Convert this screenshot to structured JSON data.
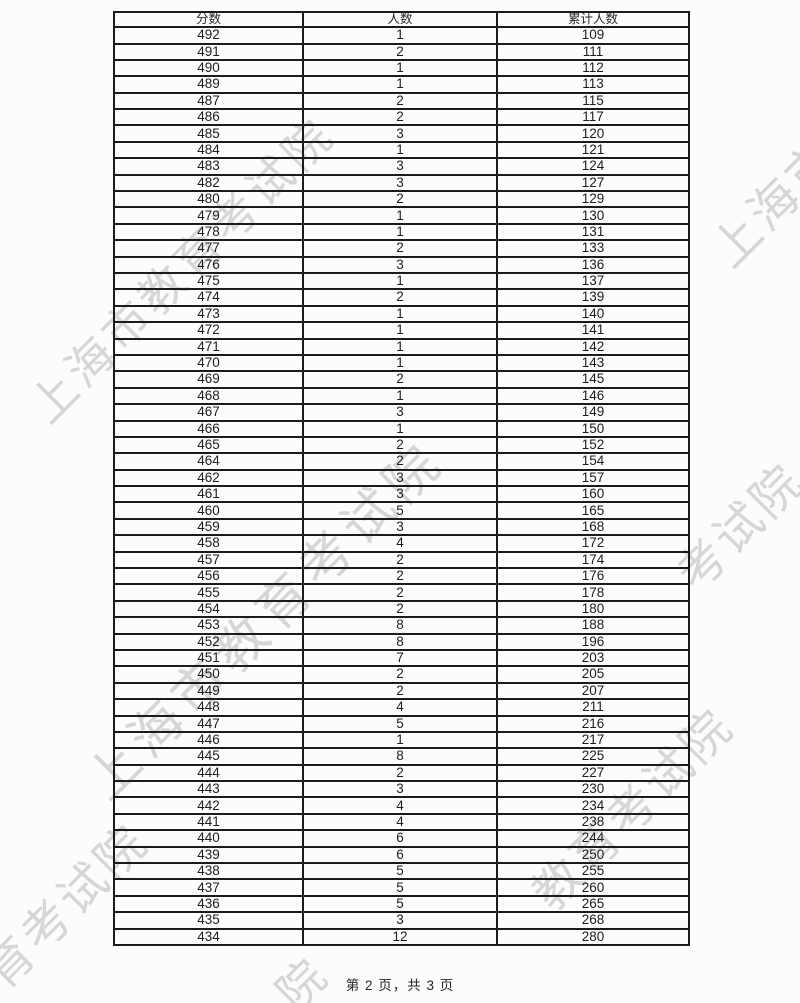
{
  "table": {
    "columns": [
      "分数",
      "人数",
      "累计人数"
    ],
    "rows": [
      [
        492,
        1,
        109
      ],
      [
        491,
        2,
        111
      ],
      [
        490,
        1,
        112
      ],
      [
        489,
        1,
        113
      ],
      [
        487,
        2,
        115
      ],
      [
        486,
        2,
        117
      ],
      [
        485,
        3,
        120
      ],
      [
        484,
        1,
        121
      ],
      [
        483,
        3,
        124
      ],
      [
        482,
        3,
        127
      ],
      [
        480,
        2,
        129
      ],
      [
        479,
        1,
        130
      ],
      [
        478,
        1,
        131
      ],
      [
        477,
        2,
        133
      ],
      [
        476,
        3,
        136
      ],
      [
        475,
        1,
        137
      ],
      [
        474,
        2,
        139
      ],
      [
        473,
        1,
        140
      ],
      [
        472,
        1,
        141
      ],
      [
        471,
        1,
        142
      ],
      [
        470,
        1,
        143
      ],
      [
        469,
        2,
        145
      ],
      [
        468,
        1,
        146
      ],
      [
        467,
        3,
        149
      ],
      [
        466,
        1,
        150
      ],
      [
        465,
        2,
        152
      ],
      [
        464,
        2,
        154
      ],
      [
        462,
        3,
        157
      ],
      [
        461,
        3,
        160
      ],
      [
        460,
        5,
        165
      ],
      [
        459,
        3,
        168
      ],
      [
        458,
        4,
        172
      ],
      [
        457,
        2,
        174
      ],
      [
        456,
        2,
        176
      ],
      [
        455,
        2,
        178
      ],
      [
        454,
        2,
        180
      ],
      [
        453,
        8,
        188
      ],
      [
        452,
        8,
        196
      ],
      [
        451,
        7,
        203
      ],
      [
        450,
        2,
        205
      ],
      [
        449,
        2,
        207
      ],
      [
        448,
        4,
        211
      ],
      [
        447,
        5,
        216
      ],
      [
        446,
        1,
        217
      ],
      [
        445,
        8,
        225
      ],
      [
        444,
        2,
        227
      ],
      [
        443,
        3,
        230
      ],
      [
        442,
        4,
        234
      ],
      [
        441,
        4,
        238
      ],
      [
        440,
        6,
        244
      ],
      [
        439,
        6,
        250
      ],
      [
        438,
        5,
        255
      ],
      [
        437,
        5,
        260
      ],
      [
        436,
        5,
        265
      ],
      [
        435,
        3,
        268
      ],
      [
        434,
        12,
        280
      ]
    ]
  },
  "footer": {
    "page_info": "第 2 页，共 3 页"
  },
  "watermark": {
    "full_text": "上海市教育考试院",
    "color": "#d0d0d0",
    "instances": [
      "上海市教育考试院",
      "上海市教育考试院",
      "育考试院",
      "上海市",
      "考试院",
      "教育考试院",
      "院"
    ]
  }
}
